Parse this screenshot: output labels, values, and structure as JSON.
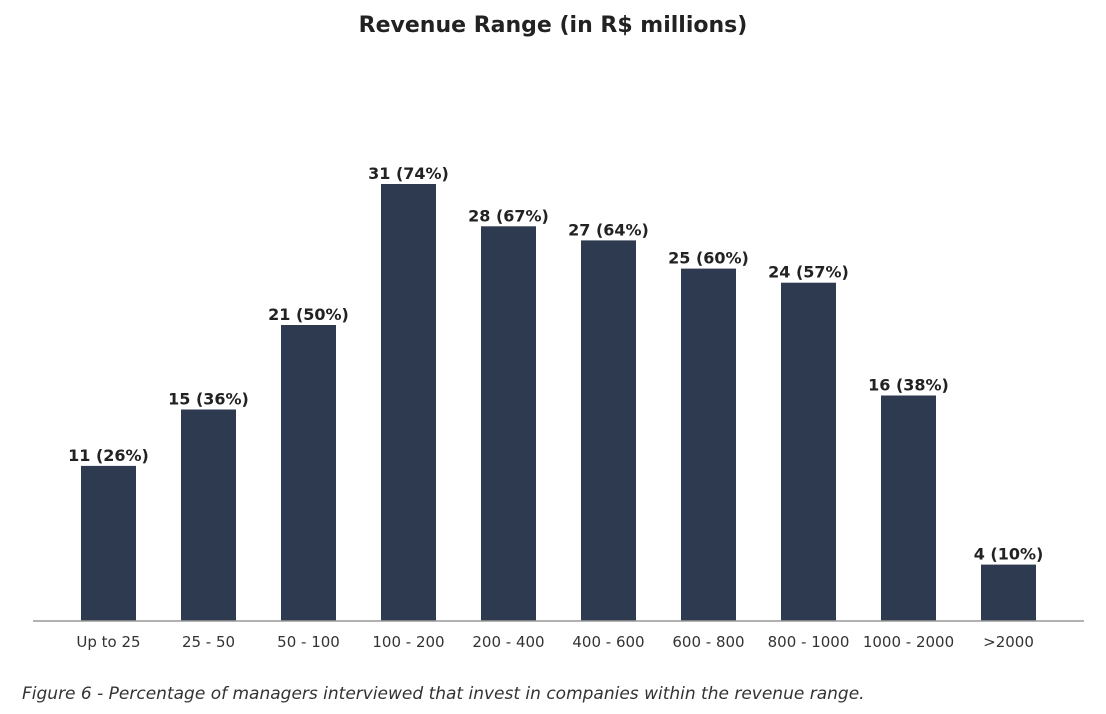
{
  "figure": {
    "caption": "Figure 6 - Percentage of managers interviewed that invest in companies within the revenue range."
  },
  "chart_data": {
    "type": "bar",
    "title": "Revenue Range (in R$ millions)",
    "xlabel": "",
    "ylabel": "",
    "categories": [
      "Up to 25",
      "25 - 50",
      "50 - 100",
      "100 - 200",
      "200 - 400",
      "400 - 600",
      "600 - 800",
      "800 - 1000",
      "1000 - 2000",
      ">2000"
    ],
    "values": [
      11,
      15,
      21,
      31,
      28,
      27,
      25,
      24,
      16,
      4
    ],
    "data_labels": [
      "11 (26%)",
      "15 (36%)",
      "21 (50%)",
      "31 (74%)",
      "28 (67%)",
      "27 (64%)",
      "25 (60%)",
      "24 (57%)",
      "16 (38%)",
      "4 (10%)"
    ],
    "percentages": [
      26,
      36,
      50,
      74,
      67,
      64,
      60,
      57,
      38,
      10
    ],
    "ylim": [
      0,
      40
    ],
    "grid": false,
    "legend": "none",
    "colors": {
      "bar": "#2e3a4f",
      "axis": "#999999",
      "text": "#222222"
    }
  }
}
